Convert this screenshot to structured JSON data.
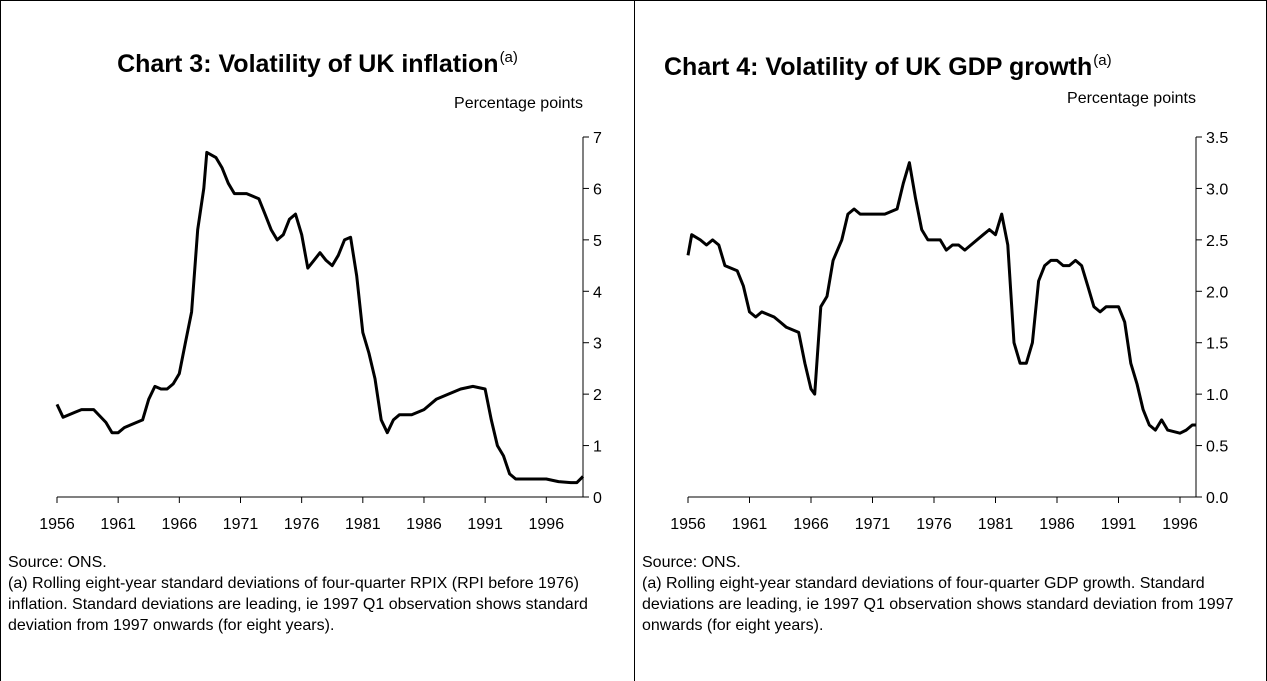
{
  "chart_data": [
    {
      "type": "line",
      "title": "Chart 3:  Volatility of UK inflation",
      "title_note": "(a)",
      "y_label": "Percentage points",
      "x": [
        1956,
        1956.5,
        1957.5,
        1958,
        1959,
        1960,
        1960.5,
        1961,
        1961.5,
        1962,
        1963,
        1963.5,
        1964,
        1964.5,
        1965,
        1965.5,
        1966,
        1966.5,
        1967,
        1967.5,
        1968,
        1968.25,
        1969,
        1969.5,
        1970,
        1970.5,
        1971.5,
        1972.5,
        1973,
        1973.5,
        1974,
        1974.5,
        1975,
        1975.5,
        1976,
        1976.5,
        1977,
        1977.5,
        1978,
        1978.5,
        1979,
        1979.5,
        1980,
        1980.5,
        1981,
        1981.5,
        1982,
        1982.5,
        1983,
        1983.5,
        1984,
        1985,
        1986,
        1987,
        1988,
        1989,
        1990,
        1991,
        1991.5,
        1992,
        1992.5,
        1993,
        1993.5,
        1994,
        1995,
        1996,
        1997,
        1998,
        1998.5,
        1999
      ],
      "values": [
        1.8,
        1.55,
        1.65,
        1.7,
        1.7,
        1.45,
        1.25,
        1.25,
        1.35,
        1.4,
        1.5,
        1.9,
        2.15,
        2.1,
        2.1,
        2.2,
        2.4,
        3.0,
        3.6,
        5.2,
        6.0,
        6.7,
        6.6,
        6.4,
        6.1,
        5.9,
        5.9,
        5.8,
        5.5,
        5.2,
        5.0,
        5.1,
        5.4,
        5.5,
        5.1,
        4.45,
        4.6,
        4.75,
        4.6,
        4.5,
        4.7,
        5.0,
        5.05,
        4.3,
        3.2,
        2.8,
        2.3,
        1.5,
        1.25,
        1.5,
        1.6,
        1.6,
        1.7,
        1.9,
        2.0,
        2.1,
        2.15,
        2.1,
        1.5,
        1.0,
        0.8,
        0.45,
        0.35,
        0.35,
        0.35,
        0.35,
        0.3,
        0.28,
        0.28,
        0.4
      ],
      "color": "#000000",
      "xlim": [
        1956,
        1999
      ],
      "xticks": [
        1956,
        1961,
        1966,
        1971,
        1976,
        1981,
        1986,
        1991,
        1996
      ],
      "ylim": [
        0,
        7
      ],
      "yticks": [
        0,
        1,
        2,
        3,
        4,
        5,
        6,
        7
      ],
      "source": "Source: ONS.",
      "note": "(a) Rolling eight-year standard deviations of four-quarter RPIX (RPI before 1976) inflation.  Standard deviations are leading, ie 1997 Q1 observation shows standard deviation from 1997 onwards (for eight years)."
    },
    {
      "type": "line",
      "title": "Chart 4:  Volatility of UK GDP growth",
      "title_note": "(a)",
      "y_label": "Percentage points",
      "x": [
        1956,
        1956.3,
        1957,
        1957.5,
        1958,
        1958.5,
        1959,
        1960,
        1960.5,
        1961,
        1961.5,
        1962,
        1963,
        1963.5,
        1964,
        1965,
        1965.5,
        1966,
        1966.3,
        1966.8,
        1967.3,
        1967.8,
        1968.5,
        1969,
        1969.5,
        1970,
        1971,
        1972,
        1973,
        1973.5,
        1974,
        1974.5,
        1975,
        1975.5,
        1976.5,
        1977,
        1977.5,
        1978,
        1978.5,
        1979,
        1980,
        1980.5,
        1981,
        1981.5,
        1982,
        1982.5,
        1983,
        1983.5,
        1984,
        1984.5,
        1985,
        1985.5,
        1986,
        1986.5,
        1987,
        1987.5,
        1988,
        1988.5,
        1989,
        1989.5,
        1990,
        1991,
        1991.5,
        1992,
        1992.5,
        1993,
        1993.5,
        1994,
        1994.5,
        1995,
        1996,
        1996.5,
        1997,
        1997.3
      ],
      "values": [
        2.35,
        2.55,
        2.5,
        2.45,
        2.5,
        2.45,
        2.25,
        2.2,
        2.05,
        1.8,
        1.75,
        1.8,
        1.75,
        1.7,
        1.65,
        1.6,
        1.3,
        1.05,
        1.0,
        1.85,
        1.95,
        2.3,
        2.5,
        2.75,
        2.8,
        2.75,
        2.75,
        2.75,
        2.8,
        3.05,
        3.25,
        2.9,
        2.6,
        2.5,
        2.5,
        2.4,
        2.45,
        2.45,
        2.4,
        2.45,
        2.55,
        2.6,
        2.55,
        2.75,
        2.45,
        1.5,
        1.3,
        1.3,
        1.5,
        2.1,
        2.25,
        2.3,
        2.3,
        2.25,
        2.25,
        2.3,
        2.25,
        2.05,
        1.85,
        1.8,
        1.85,
        1.85,
        1.7,
        1.3,
        1.1,
        0.85,
        0.7,
        0.65,
        0.75,
        0.65,
        0.62,
        0.65,
        0.7,
        0.7
      ],
      "color": "#000000",
      "xlim": [
        1956,
        1997.3
      ],
      "xticks": [
        1956,
        1961,
        1966,
        1971,
        1976,
        1981,
        1986,
        1991,
        1996
      ],
      "ylim": [
        0,
        3.5
      ],
      "yticks": [
        {
          "value": 0,
          "label": "0.0"
        },
        0.5,
        {
          "value": 1,
          "label": "1.0"
        },
        1.5,
        {
          "value": 2,
          "label": "2.0"
        },
        2.5,
        {
          "value": 3,
          "label": "3.0"
        },
        3.5
      ],
      "source": "Source: ONS.",
      "note": "(a) Rolling eight-year standard deviations of four-quarter GDP growth.  Standard deviations are leading, ie 1997 Q1 observation shows standard deviation from 1997 onwards (for eight years)."
    }
  ]
}
